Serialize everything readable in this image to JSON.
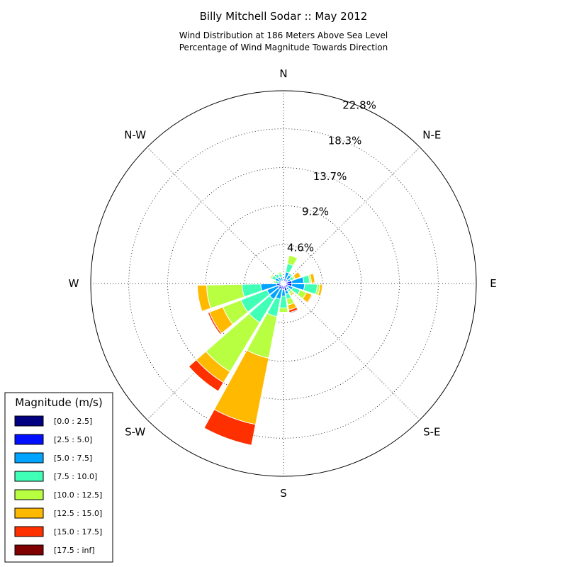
{
  "chart_data": {
    "type": "windrose",
    "title": "Billy Mitchell Sodar :: May 2012",
    "subtitle_lines": [
      "Wind Distribution at 186 Meters Above Sea Level",
      "Percentage of Wind Magnitude Towards Direction"
    ],
    "radial_max": 22.8,
    "radial_ticks": [
      4.6,
      9.2,
      13.7,
      18.3,
      22.8
    ],
    "radial_tick_labels": [
      "4.6%",
      "9.2%",
      "13.7%",
      "18.3%",
      "22.8%"
    ],
    "direction_labels": [
      {
        "label": "N",
        "angle": 0
      },
      {
        "label": "N-E",
        "angle": 45
      },
      {
        "label": "E",
        "angle": 90
      },
      {
        "label": "S-E",
        "angle": 135
      },
      {
        "label": "S",
        "angle": 180
      },
      {
        "label": "S-W",
        "angle": 225
      },
      {
        "label": "W",
        "angle": 270
      },
      {
        "label": "N-W",
        "angle": 315
      }
    ],
    "legend": {
      "title": "Magnitude (m/s)",
      "bins": [
        {
          "label": "[0.0 : 2.5]",
          "color": "#000080"
        },
        {
          "label": "[2.5 : 5.0]",
          "color": "#0010ff"
        },
        {
          "label": "[5.0 : 7.5]",
          "color": "#00a4ff"
        },
        {
          "label": "[7.5 : 10.0]",
          "color": "#40ffb7"
        },
        {
          "label": "[10.0 : 12.5]",
          "color": "#b7ff40"
        },
        {
          "label": "[12.5 : 15.0]",
          "color": "#ffb900"
        },
        {
          "label": "[15.0 : 17.5]",
          "color": "#ff3000"
        },
        {
          "label": "[17.5 : inf]",
          "color": "#800000"
        }
      ]
    },
    "sector_width_deg": 20,
    "directions": [
      {
        "angle": 0,
        "values": [
          0.1,
          0.3,
          0.2,
          0.0,
          0.0,
          0.0,
          0.0,
          0.0
        ]
      },
      {
        "angle": 20,
        "values": [
          0.1,
          0.5,
          0.8,
          1.0,
          1.0,
          0.0,
          0.0,
          0.0
        ]
      },
      {
        "angle": 40,
        "values": [
          0.1,
          0.5,
          0.6,
          0.2,
          0.0,
          0.0,
          0.0,
          0.0
        ]
      },
      {
        "angle": 60,
        "values": [
          0.1,
          0.4,
          0.4,
          0.4,
          0.2,
          0.7,
          0.0,
          0.0
        ]
      },
      {
        "angle": 80,
        "values": [
          0.2,
          0.8,
          1.4,
          0.7,
          0.2,
          0.4,
          0.0,
          0.0
        ]
      },
      {
        "angle": 100,
        "values": [
          0.2,
          0.8,
          1.5,
          1.5,
          0.3,
          0.3,
          0.0,
          0.0
        ]
      },
      {
        "angle": 120,
        "values": [
          0.1,
          0.5,
          0.6,
          0.9,
          0.8,
          0.7,
          0.1,
          0.0
        ]
      },
      {
        "angle": 140,
        "values": [
          0.2,
          0.4,
          0.3,
          0.3,
          0.3,
          0.2,
          0.0,
          0.0
        ]
      },
      {
        "angle": 160,
        "values": [
          0.2,
          0.7,
          0.4,
          0.6,
          0.7,
          0.6,
          0.3,
          0.1
        ]
      },
      {
        "angle": 180,
        "values": [
          0.1,
          0.6,
          0.8,
          1.4,
          0.5,
          0.0,
          0.0,
          0.0
        ]
      },
      {
        "angle": 200,
        "values": [
          0.1,
          0.6,
          1.2,
          2.1,
          5.0,
          8.0,
          2.5,
          0.0
        ]
      },
      {
        "angle": 220,
        "values": [
          0.1,
          0.7,
          1.4,
          3.2,
          6.8,
          1.5,
          1.2,
          0.0
        ]
      },
      {
        "angle": 240,
        "values": [
          0.1,
          0.6,
          1.4,
          3.3,
          2.3,
          1.7,
          0.2,
          0.0
        ]
      },
      {
        "angle": 260,
        "values": [
          0.1,
          0.7,
          1.9,
          2.2,
          4.2,
          1.1,
          0.0,
          0.0
        ]
      },
      {
        "angle": 280,
        "values": [
          0.0,
          0.2,
          0.4,
          0.4,
          0.2,
          0.0,
          0.0,
          0.0
        ]
      },
      {
        "angle": 300,
        "values": [
          0.0,
          0.3,
          0.8,
          0.4,
          0.2,
          0.0,
          0.0,
          0.0
        ]
      },
      {
        "angle": 320,
        "values": [
          0.0,
          0.3,
          0.6,
          0.4,
          0.0,
          0.0,
          0.0,
          0.0
        ]
      },
      {
        "angle": 340,
        "values": [
          0.0,
          0.3,
          0.5,
          0.4,
          0.2,
          0.0,
          0.0,
          0.0
        ]
      }
    ]
  }
}
